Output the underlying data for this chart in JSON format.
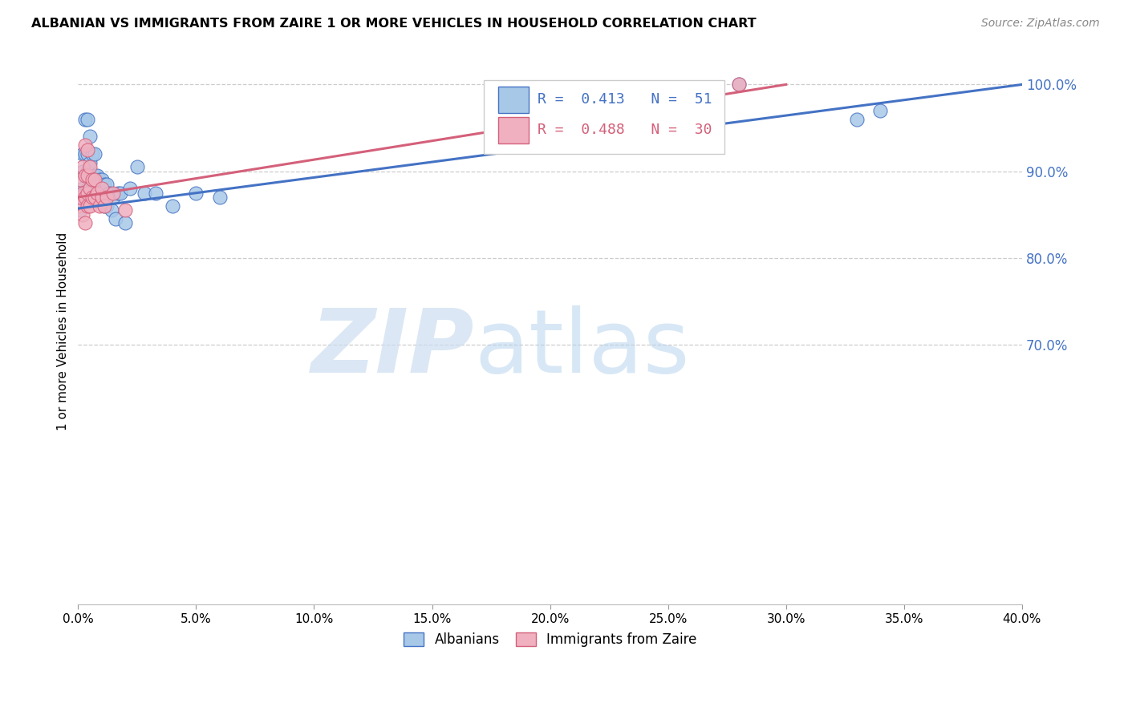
{
  "title": "ALBANIAN VS IMMIGRANTS FROM ZAIRE 1 OR MORE VEHICLES IN HOUSEHOLD CORRELATION CHART",
  "source": "Source: ZipAtlas.com",
  "ylabel": "1 or more Vehicles in Household",
  "xlabel": "",
  "legend_labels": [
    "Albanians",
    "Immigrants from Zaire"
  ],
  "r_albanian": 0.413,
  "n_albanian": 51,
  "r_zaire": 0.488,
  "n_zaire": 30,
  "line_color_albanian": "#4472c4",
  "line_color_zaire": "#d4607a",
  "dot_color_albanian": "#a8c8e8",
  "dot_color_zaire": "#f0b0c0",
  "dot_edge_albanian": "#4472c4",
  "dot_edge_zaire": "#d4607a",
  "xlim": [
    0.0,
    0.4
  ],
  "ylim": [
    0.4,
    1.03
  ],
  "xticks": [
    0.0,
    0.05,
    0.1,
    0.15,
    0.2,
    0.25,
    0.3,
    0.35,
    0.4
  ],
  "yticks_right": [
    1.0,
    0.9,
    0.8,
    0.7
  ],
  "background_color": "#ffffff",
  "grid_color": "#cccccc",
  "tick_color": "#4472c4",
  "albanian_x": [
    0.0,
    0.001,
    0.001,
    0.002,
    0.002,
    0.002,
    0.003,
    0.003,
    0.003,
    0.003,
    0.004,
    0.004,
    0.004,
    0.004,
    0.005,
    0.005,
    0.005,
    0.005,
    0.006,
    0.006,
    0.006,
    0.007,
    0.007,
    0.007,
    0.008,
    0.008,
    0.009,
    0.009,
    0.01,
    0.01,
    0.011,
    0.011,
    0.012,
    0.012,
    0.013,
    0.014,
    0.015,
    0.016,
    0.017,
    0.018,
    0.02,
    0.022,
    0.025,
    0.028,
    0.033,
    0.04,
    0.05,
    0.06,
    0.28,
    0.33,
    0.34
  ],
  "albanian_y": [
    0.875,
    0.875,
    0.855,
    0.9,
    0.92,
    0.88,
    0.875,
    0.895,
    0.92,
    0.96,
    0.88,
    0.9,
    0.92,
    0.96,
    0.87,
    0.89,
    0.91,
    0.94,
    0.87,
    0.89,
    0.92,
    0.875,
    0.895,
    0.92,
    0.875,
    0.895,
    0.87,
    0.89,
    0.865,
    0.89,
    0.86,
    0.885,
    0.86,
    0.885,
    0.875,
    0.855,
    0.87,
    0.845,
    0.875,
    0.875,
    0.84,
    0.88,
    0.905,
    0.875,
    0.875,
    0.86,
    0.875,
    0.87,
    1.0,
    0.96,
    0.97
  ],
  "zaire_x": [
    0.0,
    0.001,
    0.001,
    0.002,
    0.002,
    0.002,
    0.003,
    0.003,
    0.003,
    0.003,
    0.004,
    0.004,
    0.004,
    0.004,
    0.005,
    0.005,
    0.005,
    0.006,
    0.006,
    0.007,
    0.007,
    0.008,
    0.009,
    0.01,
    0.01,
    0.011,
    0.012,
    0.015,
    0.02,
    0.28
  ],
  "zaire_y": [
    0.86,
    0.87,
    0.89,
    0.85,
    0.875,
    0.905,
    0.84,
    0.87,
    0.895,
    0.93,
    0.86,
    0.875,
    0.895,
    0.925,
    0.86,
    0.88,
    0.905,
    0.87,
    0.89,
    0.87,
    0.89,
    0.875,
    0.86,
    0.87,
    0.88,
    0.86,
    0.87,
    0.875,
    0.855,
    1.0
  ],
  "line_alb_x0": 0.0,
  "line_alb_y0": 0.857,
  "line_alb_x1": 0.4,
  "line_alb_y1": 1.0,
  "line_zaire_x0": 0.0,
  "line_zaire_y0": 0.87,
  "line_zaire_x1": 0.3,
  "line_zaire_y1": 1.0
}
